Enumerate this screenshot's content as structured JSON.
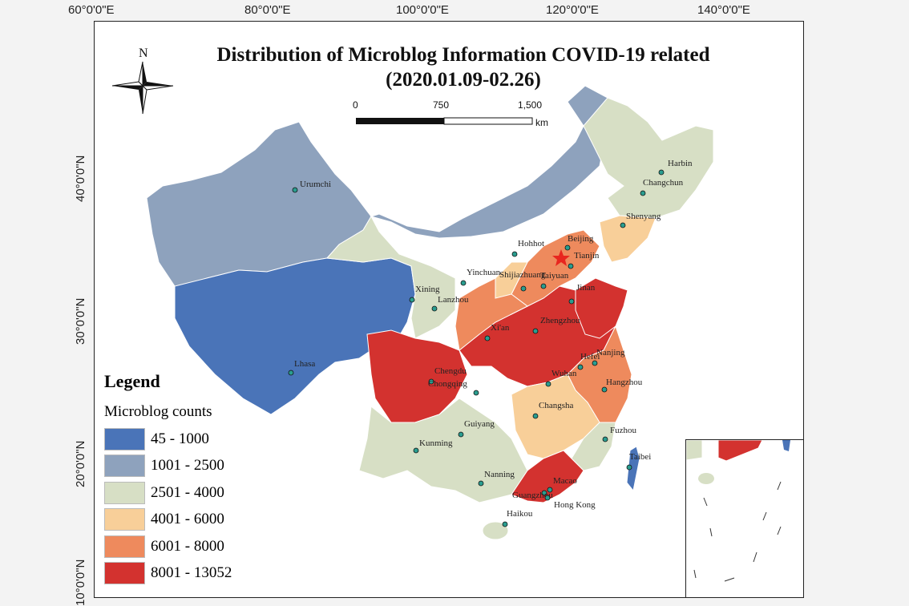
{
  "map": {
    "title_line1": "Distribution of Microblog Information COVID-19 related",
    "title_line2": "(2020.01.09-02.26)",
    "north_label": "N",
    "longitude_labels": [
      "60°0'0\"E",
      "80°0'0\"E",
      "100°0'0\"E",
      "120°0'0\"E",
      "140°0'0\"E"
    ],
    "latitude_labels": [
      "40°0'0\"N",
      "30°0'0\"N",
      "20°0'0\"N",
      "10°0'0\"N"
    ],
    "scale_bar": {
      "ticks": [
        "0",
        "750",
        "1,500"
      ],
      "unit": "km"
    },
    "legend": {
      "title": "Legend",
      "subtitle": "Microblog counts",
      "classes": [
        {
          "label": "45 - 1000",
          "color": "#4a74b8"
        },
        {
          "label": "1001 - 2500",
          "color": "#8ea2bd"
        },
        {
          "label": "2501 - 4000",
          "color": "#d7dfc5"
        },
        {
          "label": "4001 - 6000",
          "color": "#f8cf99"
        },
        {
          "label": "6001 - 8000",
          "color": "#ee8a5d"
        },
        {
          "label": "8001 - 13052",
          "color": "#d3322f"
        }
      ]
    },
    "cities": [
      "Urumchi",
      "Harbin",
      "Changchun",
      "Shenyang",
      "Hohhot",
      "Beijing",
      "Tianjin",
      "Yinchuan",
      "Taiyuan",
      "Shijiazhuang",
      "Jinan",
      "Xining",
      "Lanzhou",
      "Xi'an",
      "Zhengzhou",
      "Hefei",
      "Nanjing",
      "Hangzhou",
      "Lhasa",
      "Chengdu",
      "Chongqing",
      "Wuhan",
      "Changsha",
      "Fuzhou",
      "Guiyang",
      "Kunming",
      "Taibei",
      "Nanning",
      "Macao",
      "Guangzhou",
      "Hong Kong",
      "Haikou"
    ]
  }
}
